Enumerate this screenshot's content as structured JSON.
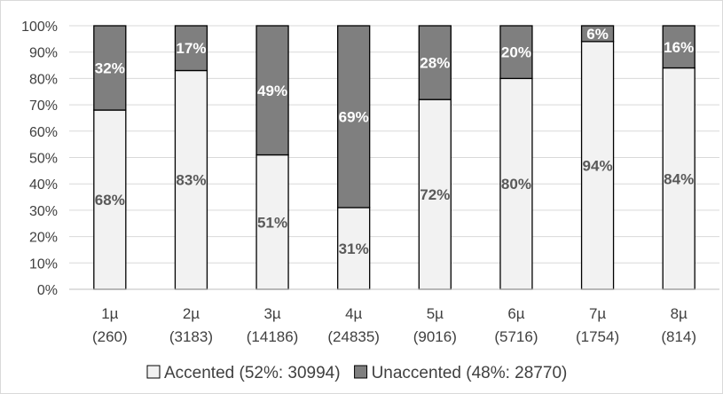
{
  "chart_data": {
    "type": "bar",
    "stacked": true,
    "percent": true,
    "categories": [
      [
        "1µ",
        "(260)"
      ],
      [
        "2µ",
        "(3183)"
      ],
      [
        "3µ",
        "(14186)"
      ],
      [
        "4µ",
        "(24835)"
      ],
      [
        "5µ",
        "(9016)"
      ],
      [
        "6µ",
        "(5716)"
      ],
      [
        "7µ",
        "(1754)"
      ],
      [
        "8µ",
        "(814)"
      ]
    ],
    "series": [
      {
        "name": "Accented (52%: 30994)",
        "color": "#f2f2f2",
        "label_color": "#595959",
        "values": [
          68,
          83,
          51,
          31,
          72,
          80,
          94,
          84
        ],
        "labels": [
          "68%",
          "83%",
          "51%",
          "31%",
          "72%",
          "80%",
          "94%",
          "84%"
        ]
      },
      {
        "name": "Unaccented (48%: 28770)",
        "color": "#7f7f7f",
        "label_color": "#ffffff",
        "values": [
          32,
          17,
          49,
          69,
          28,
          20,
          6,
          16
        ],
        "labels": [
          "32%",
          "17%",
          "49%",
          "69%",
          "28%",
          "20%",
          "6%",
          "16%"
        ]
      }
    ],
    "ylim": [
      0,
      100
    ],
    "yticks": [
      "0%",
      "10%",
      "20%",
      "30%",
      "40%",
      "50%",
      "60%",
      "70%",
      "80%",
      "90%",
      "100%"
    ],
    "grid": true,
    "legend_position": "bottom"
  }
}
